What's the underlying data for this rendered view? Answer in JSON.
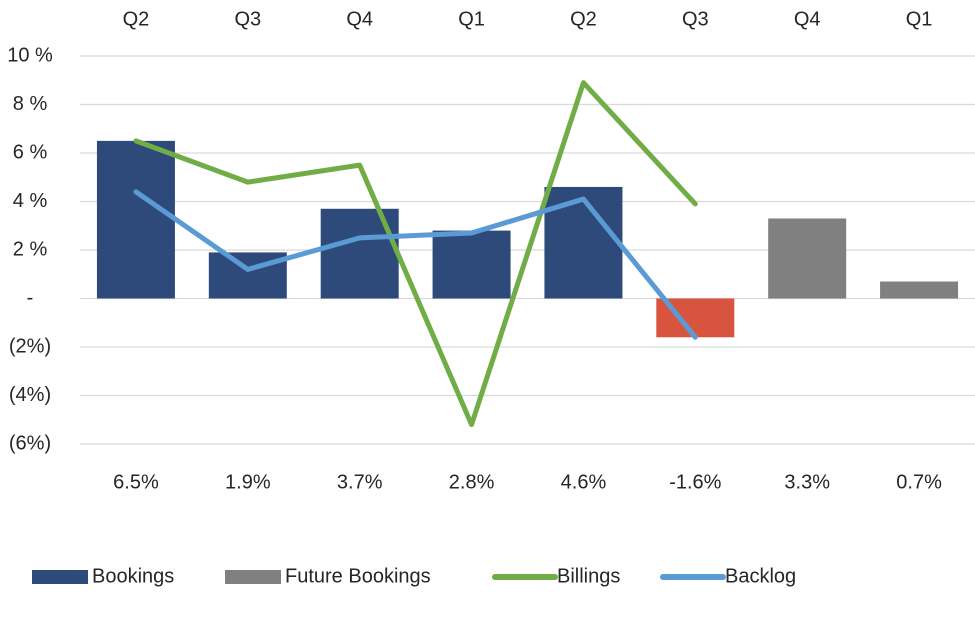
{
  "chart_data": {
    "type": "bar",
    "categories": [
      "Q2",
      "Q3",
      "Q4",
      "Q1",
      "Q2",
      "Q3",
      "Q4",
      "Q1"
    ],
    "series": [
      {
        "name": "Bookings",
        "type": "bar",
        "color": "#2e4a7a",
        "negative_color": "#d9543f",
        "values": [
          6.5,
          1.9,
          3.7,
          2.8,
          4.6,
          -1.6,
          null,
          null
        ],
        "value_labels": [
          "6.5%",
          "1.9%",
          "3.7%",
          "2.8%",
          "4.6%",
          "-1.6%",
          null,
          null
        ]
      },
      {
        "name": "Future Bookings",
        "type": "bar",
        "color": "#808080",
        "values": [
          null,
          null,
          null,
          null,
          null,
          null,
          3.3,
          0.7
        ],
        "value_labels": [
          null,
          null,
          null,
          null,
          null,
          null,
          "3.3%",
          "0.7%"
        ]
      },
      {
        "name": "Billings",
        "type": "line",
        "color": "#70ad47",
        "values": [
          6.5,
          4.8,
          5.5,
          -5.2,
          8.9,
          3.9,
          null,
          null
        ]
      },
      {
        "name": "Backlog",
        "type": "line",
        "color": "#5b9bd5",
        "values": [
          4.4,
          1.2,
          2.5,
          2.7,
          4.1,
          -1.6,
          null,
          null
        ]
      }
    ],
    "ylim": [
      -6,
      10
    ],
    "yticks": [
      {
        "value": 10,
        "label": "10 %"
      },
      {
        "value": 8,
        "label": "8 %"
      },
      {
        "value": 6,
        "label": "6 %"
      },
      {
        "value": 4,
        "label": "4 %"
      },
      {
        "value": 2,
        "label": "2 %"
      },
      {
        "value": 0,
        "label": "-"
      },
      {
        "value": -2,
        "label": "(2%)"
      },
      {
        "value": -4,
        "label": "(4%)"
      },
      {
        "value": -6,
        "label": "(6%)"
      }
    ],
    "grid": true
  }
}
